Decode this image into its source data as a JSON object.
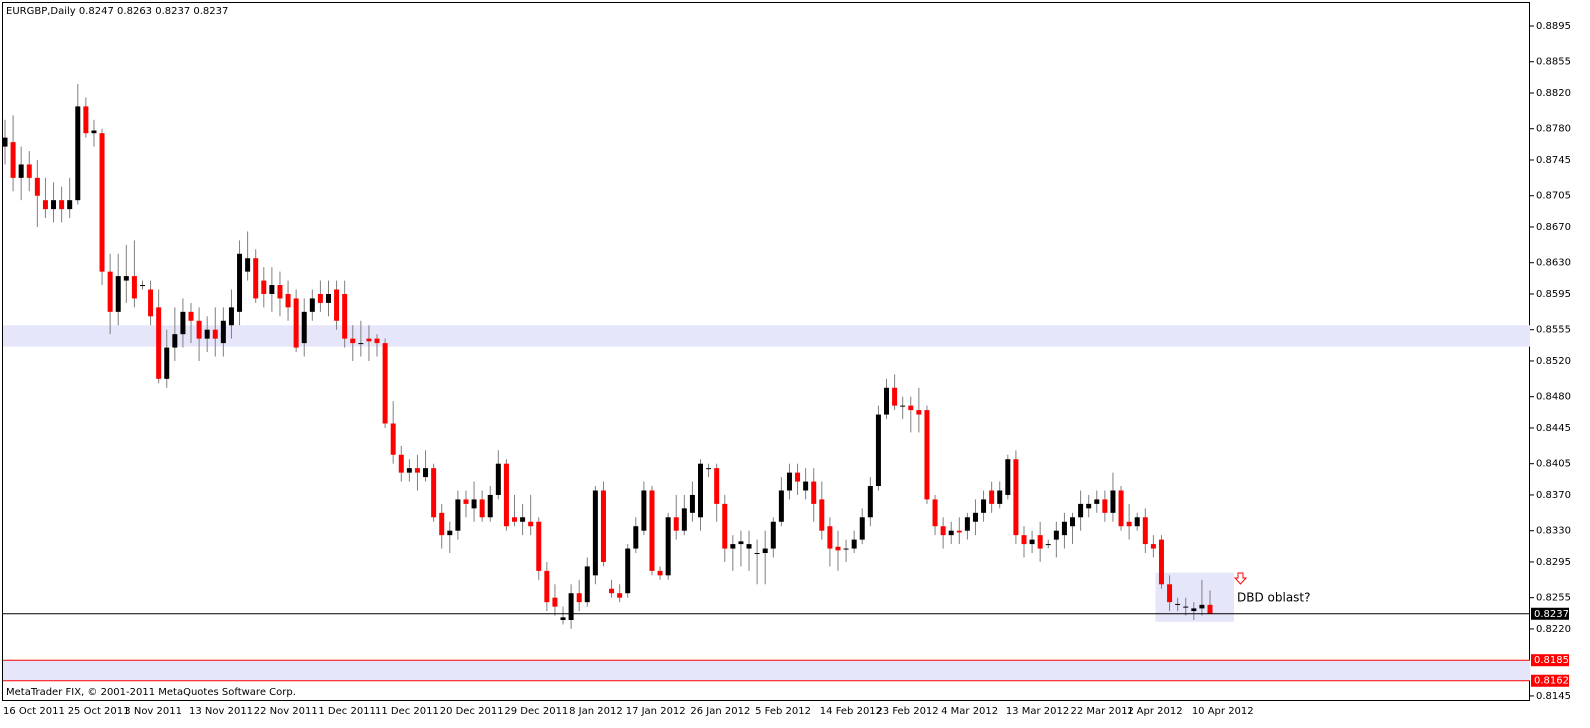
{
  "chart_data": {
    "type": "candlestick",
    "title": "EURGBP,Daily  0.8247 0.8263 0.8237 0.8237",
    "footer": "MetaTrader FIX, © 2001-2011 MetaQuotes Software Corp.",
    "annotation": "DBD oblast?",
    "up_color": "#000000",
    "down_color": "#ff0000",
    "wick_color": "#7f7f7f",
    "zone_color": "#e6e6fa",
    "grid": false,
    "ylim": [
      0.814,
      0.891
    ],
    "yticks": [
      0.8895,
      0.8855,
      {
        "value": 0.882,
        "label": "0.8820"
      },
      {
        "value": 0.878,
        "label": "0.8780"
      },
      0.8745,
      0.8705,
      {
        "value": 0.867,
        "label": "0.8670"
      },
      {
        "value": 0.863,
        "label": "0.8630"
      },
      0.8595,
      0.8555,
      {
        "value": 0.852,
        "label": "0.8520"
      },
      {
        "value": 0.848,
        "label": "0.8480"
      },
      0.8445,
      0.8405,
      {
        "value": 0.837,
        "label": "0.8370"
      },
      {
        "value": 0.833,
        "label": "0.8330"
      },
      0.8295,
      0.8255,
      {
        "value": 0.822,
        "label": "0.8220"
      },
      0.8145
    ],
    "price_lines": [
      {
        "value": 0.8237,
        "color": "#000000"
      },
      {
        "value": 0.8185,
        "color": "#ff0000"
      },
      {
        "value": 0.8162,
        "color": "#ff0000"
      }
    ],
    "zones": [
      {
        "from": 0.8536,
        "to": 0.856
      },
      {
        "from": 0.8162,
        "to": 0.8185
      },
      {
        "from": 0.8228,
        "to": 0.8283
      }
    ],
    "categories": [
      "16 Oct 2011",
      null,
      null,
      null,
      null,
      null,
      null,
      null,
      "25 Oct 2011",
      null,
      null,
      null,
      null,
      null,
      null,
      "3 Nov 2011",
      null,
      null,
      null,
      null,
      null,
      null,
      null,
      "13 Nov 2011",
      null,
      null,
      null,
      null,
      null,
      null,
      null,
      "22 Nov 2011",
      null,
      null,
      null,
      null,
      null,
      null,
      null,
      "1 Dec 2011",
      null,
      null,
      null,
      null,
      null,
      null,
      "11 Dec 2011",
      null,
      null,
      null,
      null,
      null,
      null,
      null,
      "20 Dec 2011",
      null,
      null,
      null,
      null,
      null,
      null,
      null,
      "29 Dec 2011",
      null,
      null,
      null,
      null,
      null,
      null,
      null,
      "8 Jan 2012",
      null,
      null,
      null,
      null,
      null,
      null,
      "17 Jan 2012",
      null,
      null,
      null,
      null,
      null,
      null,
      null,
      "26 Jan 2012",
      null,
      null,
      null,
      null,
      null,
      null,
      null,
      "5 Feb 2012",
      null,
      null,
      null,
      null,
      null,
      null,
      null,
      "14 Feb 2012",
      null,
      null,
      null,
      null,
      null,
      null,
      "23 Feb 2012",
      null,
      null,
      null,
      null,
      null,
      null,
      null,
      "4 Mar 2012",
      null,
      null,
      null,
      null,
      null,
      null,
      null,
      "13 Mar 2012",
      null,
      null,
      null,
      null,
      null,
      null,
      null,
      "22 Mar 2012",
      null,
      null,
      null,
      null,
      null,
      null,
      "1 Apr 2012",
      null,
      null,
      null,
      null,
      null,
      null,
      null,
      "10 Apr 2012",
      null,
      null
    ],
    "open": [
      0.876,
      0.8765,
      0.8725,
      0.874,
      0.8725,
      0.87,
      0.869,
      0.87,
      0.869,
      0.87,
      0.8805,
      0.8775,
      0.8775,
      0.862,
      0.8575,
      0.861,
      0.8615,
      0.8605,
      0.86,
      0.858,
      0.85,
      0.8535,
      0.855,
      0.8575,
      0.8565,
      0.8545,
      0.8555,
      0.854,
      0.856,
      0.8575,
      0.862,
      0.8635,
      0.861,
      0.8595,
      0.8605,
      0.8595,
      0.859,
      0.854,
      0.8575,
      0.8595,
      0.8585,
      0.86,
      0.8595,
      0.8545,
      0.854,
      0.8545,
      0.8545,
      0.854,
      0.845,
      0.8415,
      0.8395,
      0.84,
      0.839,
      0.84,
      0.835,
      0.8325,
      0.833,
      0.8365,
      0.8355,
      0.8365,
      0.8345,
      0.837,
      0.8405,
      0.8345,
      0.834,
      0.834,
      0.834,
      0.8285,
      0.8255,
      0.823,
      0.823,
      0.826,
      0.825,
      0.828,
      0.8375,
      0.8265,
      0.826,
      0.826,
      0.831,
      0.833,
      0.8375,
      0.8285,
      0.828,
      0.8345,
      0.833,
      0.835,
      0.8345,
      0.84,
      0.84,
      0.836,
      0.831,
      0.8315,
      0.831,
      0.8305,
      0.8305,
      0.831,
      0.834,
      0.8375,
      0.8395,
      0.8375,
      0.8385,
      0.8365,
      0.8335,
      0.8312,
      0.831,
      0.831,
      0.832,
      0.8345,
      0.838,
      0.846,
      0.849,
      0.847,
      0.847,
      0.8465,
      0.8465,
      0.8365,
      0.8335,
      0.8325,
      0.833,
      0.833,
      0.834,
      0.835,
      0.8375,
      0.836,
      0.837,
      0.841,
      0.8325,
      0.8315,
      0.8325,
      0.8315,
      0.832,
      0.8325,
      0.8335,
      0.8345,
      0.8355,
      0.836,
      0.8365,
      0.835,
      0.8375,
      0.834,
      0.8335,
      0.8345,
      0.8315,
      0.832,
      0.827,
      0.8248,
      0.8245,
      0.824,
      0.8243,
      0.8247
    ],
    "high": [
      0.879,
      0.8795,
      0.876,
      0.8755,
      0.8745,
      0.8725,
      0.872,
      0.8715,
      0.8725,
      0.883,
      0.8815,
      0.879,
      0.878,
      0.864,
      0.864,
      0.865,
      0.8655,
      0.861,
      0.861,
      0.86,
      0.8555,
      0.858,
      0.859,
      0.8585,
      0.858,
      0.857,
      0.858,
      0.858,
      0.86,
      0.8655,
      0.8665,
      0.8645,
      0.8625,
      0.8625,
      0.862,
      0.861,
      0.86,
      0.859,
      0.86,
      0.861,
      0.861,
      0.861,
      0.861,
      0.856,
      0.8565,
      0.856,
      0.855,
      0.8545,
      0.8475,
      0.8425,
      0.841,
      0.8415,
      0.842,
      0.8405,
      0.836,
      0.834,
      0.8375,
      0.8375,
      0.8385,
      0.8375,
      0.838,
      0.842,
      0.841,
      0.837,
      0.836,
      0.837,
      0.8345,
      0.8295,
      0.827,
      0.8245,
      0.827,
      0.8275,
      0.83,
      0.838,
      0.8385,
      0.8275,
      0.827,
      0.8315,
      0.8345,
      0.8385,
      0.838,
      0.829,
      0.835,
      0.837,
      0.837,
      0.8385,
      0.841,
      0.8405,
      0.8405,
      0.837,
      0.8325,
      0.833,
      0.833,
      0.832,
      0.833,
      0.8345,
      0.839,
      0.8405,
      0.8405,
      0.84,
      0.84,
      0.8385,
      0.8345,
      0.833,
      0.832,
      0.833,
      0.8355,
      0.839,
      0.847,
      0.85,
      0.8505,
      0.848,
      0.848,
      0.849,
      0.847,
      0.837,
      0.8345,
      0.834,
      0.8345,
      0.835,
      0.8365,
      0.8375,
      0.8385,
      0.8385,
      0.8415,
      0.842,
      0.8335,
      0.833,
      0.834,
      0.832,
      0.834,
      0.835,
      0.835,
      0.8375,
      0.837,
      0.8375,
      0.8375,
      0.8395,
      0.838,
      0.836,
      0.835,
      0.8355,
      0.8325,
      0.8325,
      0.828,
      0.8255,
      0.8255,
      0.825,
      0.8275,
      0.8263
    ],
    "low": [
      0.874,
      0.871,
      0.87,
      0.871,
      0.867,
      0.868,
      0.8675,
      0.8675,
      0.868,
      0.8695,
      0.877,
      0.876,
      0.8605,
      0.855,
      0.856,
      0.8585,
      0.858,
      0.86,
      0.856,
      0.8495,
      0.849,
      0.852,
      0.8535,
      0.854,
      0.852,
      0.853,
      0.8525,
      0.8525,
      0.8545,
      0.856,
      0.861,
      0.8585,
      0.858,
      0.8575,
      0.857,
      0.8565,
      0.853,
      0.8525,
      0.8565,
      0.8575,
      0.857,
      0.8555,
      0.8535,
      0.852,
      0.8525,
      0.852,
      0.8525,
      0.8445,
      0.8405,
      0.8385,
      0.8385,
      0.8375,
      0.8385,
      0.834,
      0.831,
      0.8305,
      0.832,
      0.8345,
      0.834,
      0.834,
      0.834,
      0.8365,
      0.833,
      0.8335,
      0.8325,
      0.8325,
      0.8275,
      0.824,
      0.8235,
      0.8225,
      0.822,
      0.824,
      0.8245,
      0.827,
      0.829,
      0.8255,
      0.825,
      0.8255,
      0.8305,
      0.8325,
      0.828,
      0.8275,
      0.8275,
      0.832,
      0.8325,
      0.834,
      0.833,
      0.839,
      0.834,
      0.8295,
      0.8285,
      0.829,
      0.8285,
      0.827,
      0.827,
      0.83,
      0.8335,
      0.8365,
      0.837,
      0.8365,
      0.834,
      0.832,
      0.829,
      0.8285,
      0.8295,
      0.8305,
      0.8315,
      0.8335,
      0.8375,
      0.8455,
      0.8465,
      0.8455,
      0.844,
      0.844,
      0.836,
      0.8325,
      0.831,
      0.8315,
      0.8315,
      0.832,
      0.8325,
      0.834,
      0.835,
      0.8355,
      0.8365,
      0.8315,
      0.83,
      0.8305,
      0.8295,
      0.831,
      0.83,
      0.831,
      0.8315,
      0.833,
      0.8345,
      0.835,
      0.834,
      0.834,
      0.833,
      0.832,
      0.833,
      0.8305,
      0.83,
      0.8265,
      0.824,
      0.824,
      0.8235,
      0.823,
      0.8235,
      0.8237
    ],
    "close": [
      0.877,
      0.8725,
      0.874,
      0.8725,
      0.8705,
      0.869,
      0.87,
      0.869,
      0.87,
      0.8805,
      0.8775,
      0.8778,
      0.862,
      0.8575,
      0.8615,
      0.8615,
      0.859,
      0.8605,
      0.857,
      0.85,
      0.8535,
      0.855,
      0.8575,
      0.8565,
      0.8545,
      0.8555,
      0.8545,
      0.8565,
      0.858,
      0.864,
      0.8635,
      0.859,
      0.8595,
      0.8605,
      0.859,
      0.858,
      0.8535,
      0.8575,
      0.859,
      0.8585,
      0.8595,
      0.8565,
      0.8545,
      0.854,
      0.854,
      0.8542,
      0.854,
      0.845,
      0.8415,
      0.8395,
      0.84,
      0.8395,
      0.84,
      0.8345,
      0.8325,
      0.833,
      0.8365,
      0.836,
      0.8365,
      0.8345,
      0.837,
      0.8405,
      0.8335,
      0.834,
      0.8345,
      0.8335,
      0.8285,
      0.825,
      0.8245,
      0.8233,
      0.826,
      0.825,
      0.829,
      0.8375,
      0.8295,
      0.826,
      0.8255,
      0.831,
      0.8335,
      0.8375,
      0.8285,
      0.828,
      0.8345,
      0.833,
      0.8355,
      0.837,
      0.8405,
      0.84,
      0.836,
      0.831,
      0.8315,
      0.8318,
      0.8315,
      0.8305,
      0.831,
      0.834,
      0.8375,
      0.8395,
      0.8385,
      0.8385,
      0.836,
      0.833,
      0.831,
      0.8308,
      0.831,
      0.832,
      0.8345,
      0.838,
      0.846,
      0.849,
      0.847,
      0.847,
      0.8465,
      0.846,
      0.8365,
      0.8335,
      0.8325,
      0.833,
      0.8328,
      0.8345,
      0.835,
      0.8365,
      0.836,
      0.8375,
      0.841,
      0.8325,
      0.8315,
      0.832,
      0.831,
      0.8315,
      0.833,
      0.834,
      0.8345,
      0.836,
      0.836,
      0.8365,
      0.835,
      0.8375,
      0.8335,
      0.8335,
      0.8345,
      0.8315,
      0.831,
      0.827,
      0.825,
      0.8248,
      0.8245,
      0.8243,
      0.8247,
      0.8237
    ]
  }
}
